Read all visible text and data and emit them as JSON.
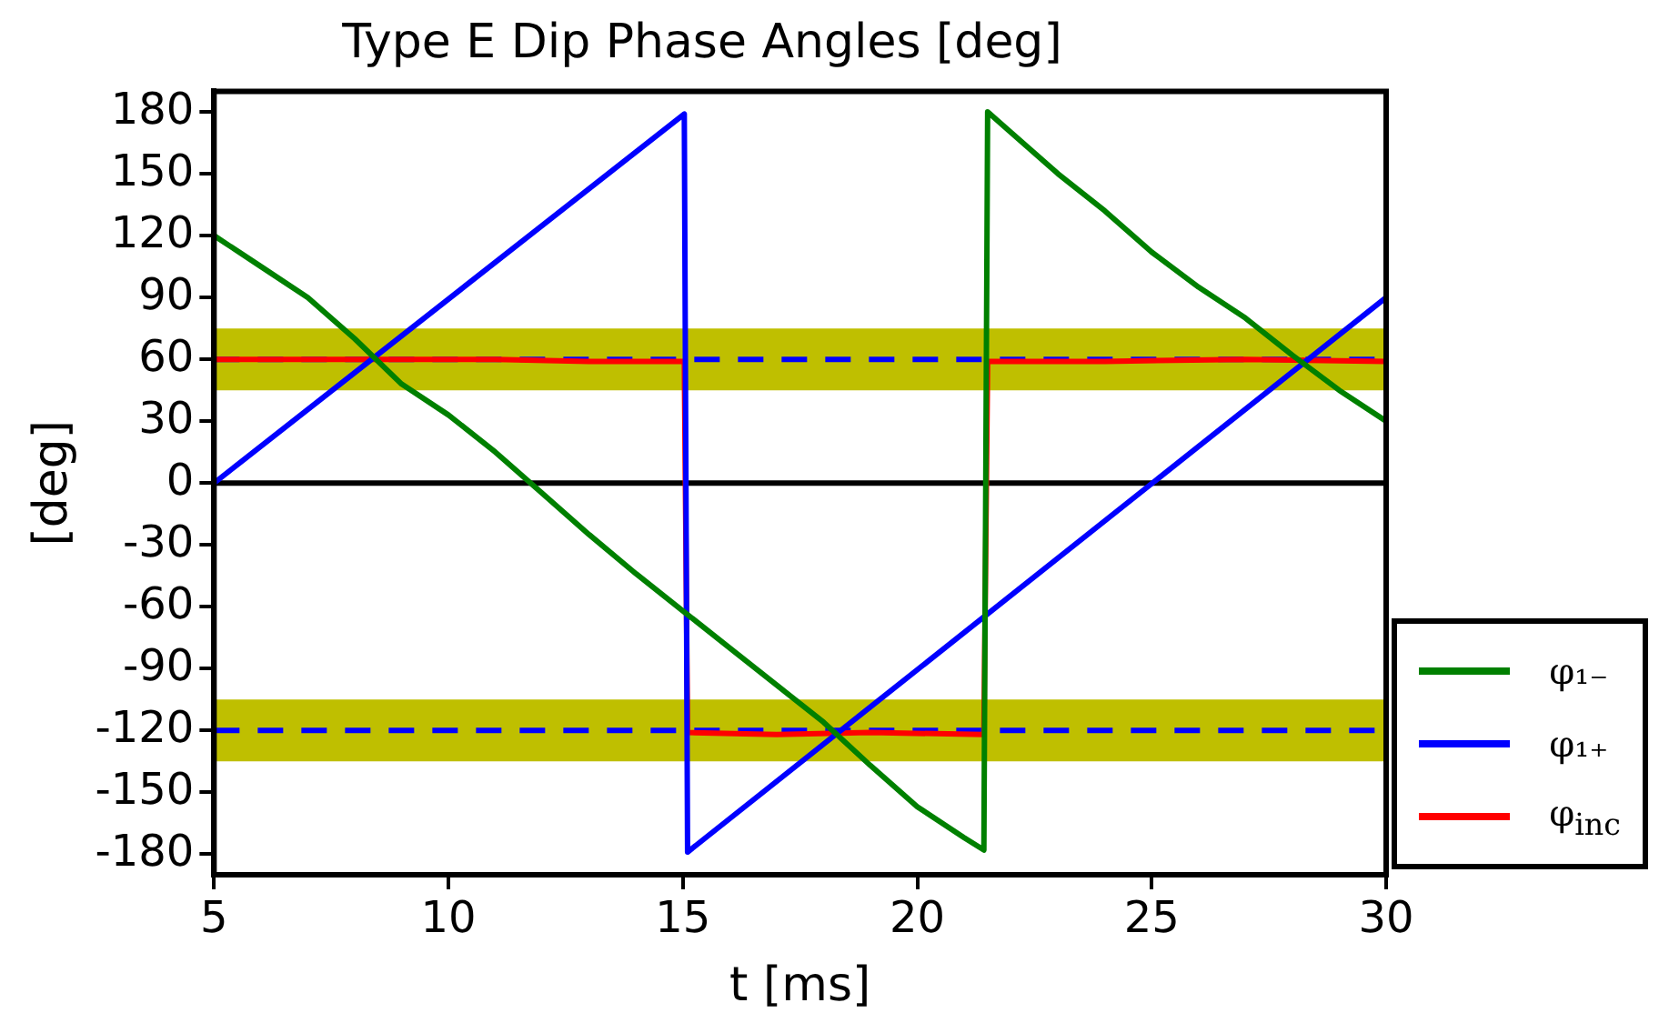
{
  "chart_data": {
    "type": "line",
    "title": "Type E Dip Phase Angles [deg]",
    "xlabel": "t [ms]",
    "ylabel": "[deg]",
    "xlim": [
      5,
      30
    ],
    "xticks": [
      5,
      10,
      15,
      20,
      25,
      30
    ],
    "ylim": [
      -190,
      190
    ],
    "yticks": [
      -180,
      -150,
      -120,
      -90,
      -60,
      -30,
      0,
      30,
      60,
      90,
      120,
      150,
      180
    ],
    "grid": false,
    "legend": "bottom right",
    "marker": "none",
    "line_style": "solid",
    "series": [
      {
        "name": "φ₁₋",
        "color": "#008000",
        "x": [
          5,
          6,
          7,
          8,
          9,
          10,
          11,
          12,
          13,
          14,
          15,
          16,
          17,
          18,
          19,
          20,
          21,
          21.42,
          21.5,
          22,
          23,
          24,
          25,
          26,
          27,
          28,
          29,
          30
        ],
        "values": [
          120,
          105,
          90,
          70,
          48,
          33,
          15,
          -5,
          -25,
          -44,
          -62,
          -80,
          -98,
          -116,
          -137,
          -157,
          -172,
          -178,
          180,
          170,
          150,
          132,
          112,
          95,
          80,
          62,
          45,
          30
        ]
      },
      {
        "name": "φ₁₊",
        "color": "#0000ff",
        "x": [
          5,
          15.03,
          15.1,
          30
        ],
        "values": [
          0,
          179,
          -179,
          90
        ]
      },
      {
        "name": "φ$_{inc}$",
        "color": "#ff0000",
        "x": [
          5,
          7,
          9,
          11,
          13,
          15.03,
          15.1,
          17,
          19,
          21.42,
          21.5,
          24,
          27,
          30
        ],
        "values": [
          60,
          60,
          60,
          60,
          59,
          59,
          -121,
          -122,
          -121,
          -122,
          59,
          59,
          60,
          59
        ]
      }
    ],
    "bands": [
      {
        "axis": "y",
        "from": 45,
        "to": 75,
        "color": "#bfbf00"
      },
      {
        "axis": "y",
        "from": -135,
        "to": -105,
        "color": "#bfbf00"
      }
    ],
    "ref_lines": [
      {
        "axis": "y",
        "value": 0,
        "color": "#000000",
        "line_style": "solid"
      },
      {
        "axis": "y",
        "value": 60,
        "color": "#0000ff",
        "line_style": "dashed"
      },
      {
        "axis": "y",
        "value": -120,
        "color": "#0000ff",
        "line_style": "dashed"
      }
    ]
  }
}
